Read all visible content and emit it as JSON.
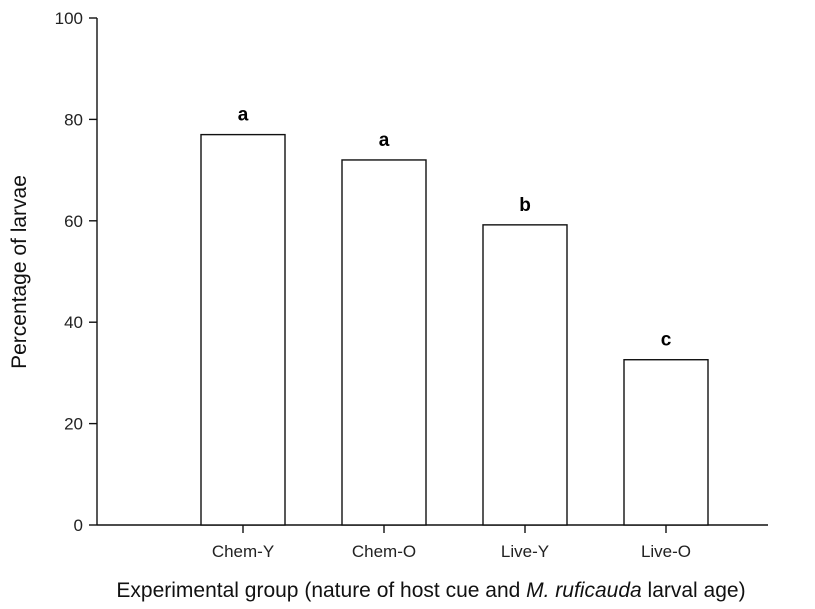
{
  "chart_data": {
    "type": "bar",
    "categories": [
      "Chem-Y",
      "Chem-O",
      "Live-Y",
      "Live-O"
    ],
    "values": [
      77,
      72,
      59.2,
      32.6
    ],
    "significance_labels": [
      "a",
      "a",
      "b",
      "c"
    ],
    "ylabel": "Percentage of larvae",
    "xlabel_parts": [
      {
        "text": "Experimental group (nature of host cue and ",
        "italic": false
      },
      {
        "text": "M. ruficauda",
        "italic": true
      },
      {
        "text": " larval age)",
        "italic": false
      }
    ],
    "ylim": [
      0,
      100
    ],
    "yticks": [
      "0",
      "20",
      "40",
      "60",
      "80",
      "100"
    ],
    "grid": false,
    "legend": "none",
    "bar_fill": "#ffffff",
    "bar_edge": "#111111"
  }
}
